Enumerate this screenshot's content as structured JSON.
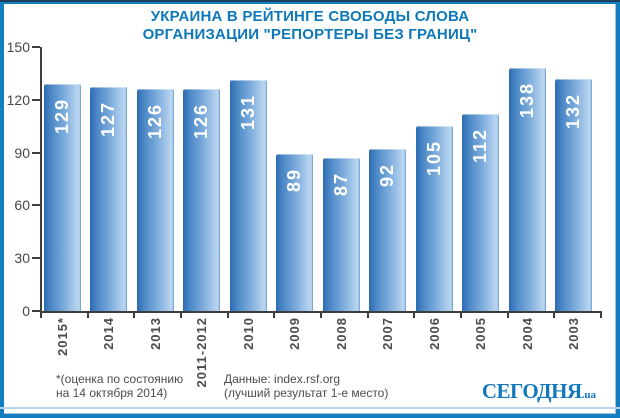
{
  "title": {
    "line1": "УКРАИНА В РЕЙТИНГЕ СВОБОДЫ СЛОВА",
    "line2": "ОРГАНИЗАЦИИ \"РЕПОРТЕРЫ БЕЗ ГРАНИЦ\""
  },
  "chart_data": {
    "type": "bar",
    "categories": [
      "2015*",
      "2014",
      "2013",
      "2011-2012",
      "2010",
      "2009",
      "2008",
      "2007",
      "2006",
      "2005",
      "2004",
      "2003"
    ],
    "values": [
      129,
      127,
      126,
      126,
      131,
      89,
      87,
      92,
      105,
      112,
      138,
      132
    ],
    "title": "УКРАИНА В РЕЙТИНГЕ СВОБОДЫ СЛОВА ОРГАНИЗАЦИИ \"РЕПОРТЕРЫ БЕЗ ГРАНИЦ\"",
    "xlabel": "",
    "ylabel": "",
    "ylim": [
      0,
      150
    ],
    "yticks": [
      0,
      30,
      60,
      90,
      120,
      150
    ],
    "grid": false,
    "legend": false,
    "value_labels_inside_bars": true
  },
  "footnote": {
    "line1": "*(оценка по состоянию",
    "line2": "на 14 октября 2014)"
  },
  "source": {
    "line1": "Данные: index.rsf.org",
    "line2": "(лучший результат 1-е место)"
  },
  "logo": {
    "main": "СЕГОДНЯ",
    "suffix": ".ua"
  },
  "colors": {
    "frame_blue": "#147fc0",
    "frame_navy": "#1e3d5a",
    "title_blue": "#0f78b8",
    "axis": "#3e3e3e",
    "label_gray": "#4c4c4c",
    "bar_dark": "#2d6cb0",
    "bar_light": "#b9d5f0",
    "value_label": "#ffffff",
    "logo_blue": "#1278bb",
    "separator_light_blue": "#b7d4e8"
  }
}
